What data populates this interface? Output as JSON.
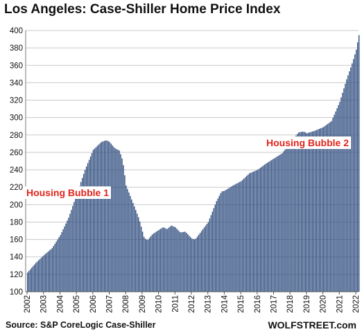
{
  "chart_data": {
    "type": "bar",
    "title": "Los Angeles: Case-Shiller Home Price Index",
    "source": "Source: S&P CoreLogic Case-Shiller",
    "brand": "WOLFSTREET.com",
    "ylim": [
      100,
      400
    ],
    "yticks": [
      100,
      120,
      140,
      160,
      180,
      200,
      220,
      240,
      260,
      280,
      300,
      320,
      340,
      360,
      380,
      400
    ],
    "xticks": [
      "2002",
      "2003",
      "2004",
      "2005",
      "2006",
      "2007",
      "2008",
      "2009",
      "2010",
      "2011",
      "2012",
      "2013",
      "2014",
      "2015",
      "2016",
      "2017",
      "2018",
      "2019",
      "2020",
      "2021",
      "2022"
    ],
    "grid": true,
    "bar_color": "#2e4c7e",
    "annotation_color": "#e2231a",
    "annotations": [
      {
        "text": "Housing Bubble 1"
      },
      {
        "text": "Housing Bubble 2"
      }
    ],
    "anchors": [
      [
        2002.0,
        122
      ],
      [
        2002.5,
        133
      ],
      [
        2003.0,
        142
      ],
      [
        2003.5,
        150
      ],
      [
        2004.0,
        165
      ],
      [
        2004.5,
        185
      ],
      [
        2005.0,
        212
      ],
      [
        2005.5,
        240
      ],
      [
        2006.0,
        263
      ],
      [
        2006.5,
        272
      ],
      [
        2006.8,
        274
      ],
      [
        2007.0,
        272
      ],
      [
        2007.3,
        265
      ],
      [
        2007.6,
        262
      ],
      [
        2007.8,
        250
      ],
      [
        2008.0,
        222
      ],
      [
        2008.5,
        198
      ],
      [
        2008.8,
        183
      ],
      [
        2009.1,
        162
      ],
      [
        2009.3,
        159
      ],
      [
        2009.6,
        166
      ],
      [
        2010.0,
        171
      ],
      [
        2010.25,
        174
      ],
      [
        2010.5,
        172
      ],
      [
        2010.75,
        176
      ],
      [
        2011.0,
        174
      ],
      [
        2011.3,
        168
      ],
      [
        2011.6,
        169
      ],
      [
        2012.0,
        161
      ],
      [
        2012.2,
        160
      ],
      [
        2012.6,
        170
      ],
      [
        2013.0,
        180
      ],
      [
        2013.5,
        204
      ],
      [
        2013.8,
        215
      ],
      [
        2014.0,
        216
      ],
      [
        2014.5,
        222
      ],
      [
        2015.0,
        227
      ],
      [
        2015.5,
        236
      ],
      [
        2016.0,
        240
      ],
      [
        2016.5,
        247
      ],
      [
        2017.0,
        253
      ],
      [
        2017.5,
        259
      ],
      [
        2018.0,
        272
      ],
      [
        2018.5,
        283
      ],
      [
        2018.8,
        284
      ],
      [
        2019.0,
        282
      ],
      [
        2019.5,
        285
      ],
      [
        2020.0,
        289
      ],
      [
        2020.5,
        296
      ],
      [
        2021.0,
        318
      ],
      [
        2021.4,
        343
      ],
      [
        2021.8,
        365
      ],
      [
        2022.0,
        378
      ],
      [
        2022.2,
        398
      ]
    ]
  }
}
